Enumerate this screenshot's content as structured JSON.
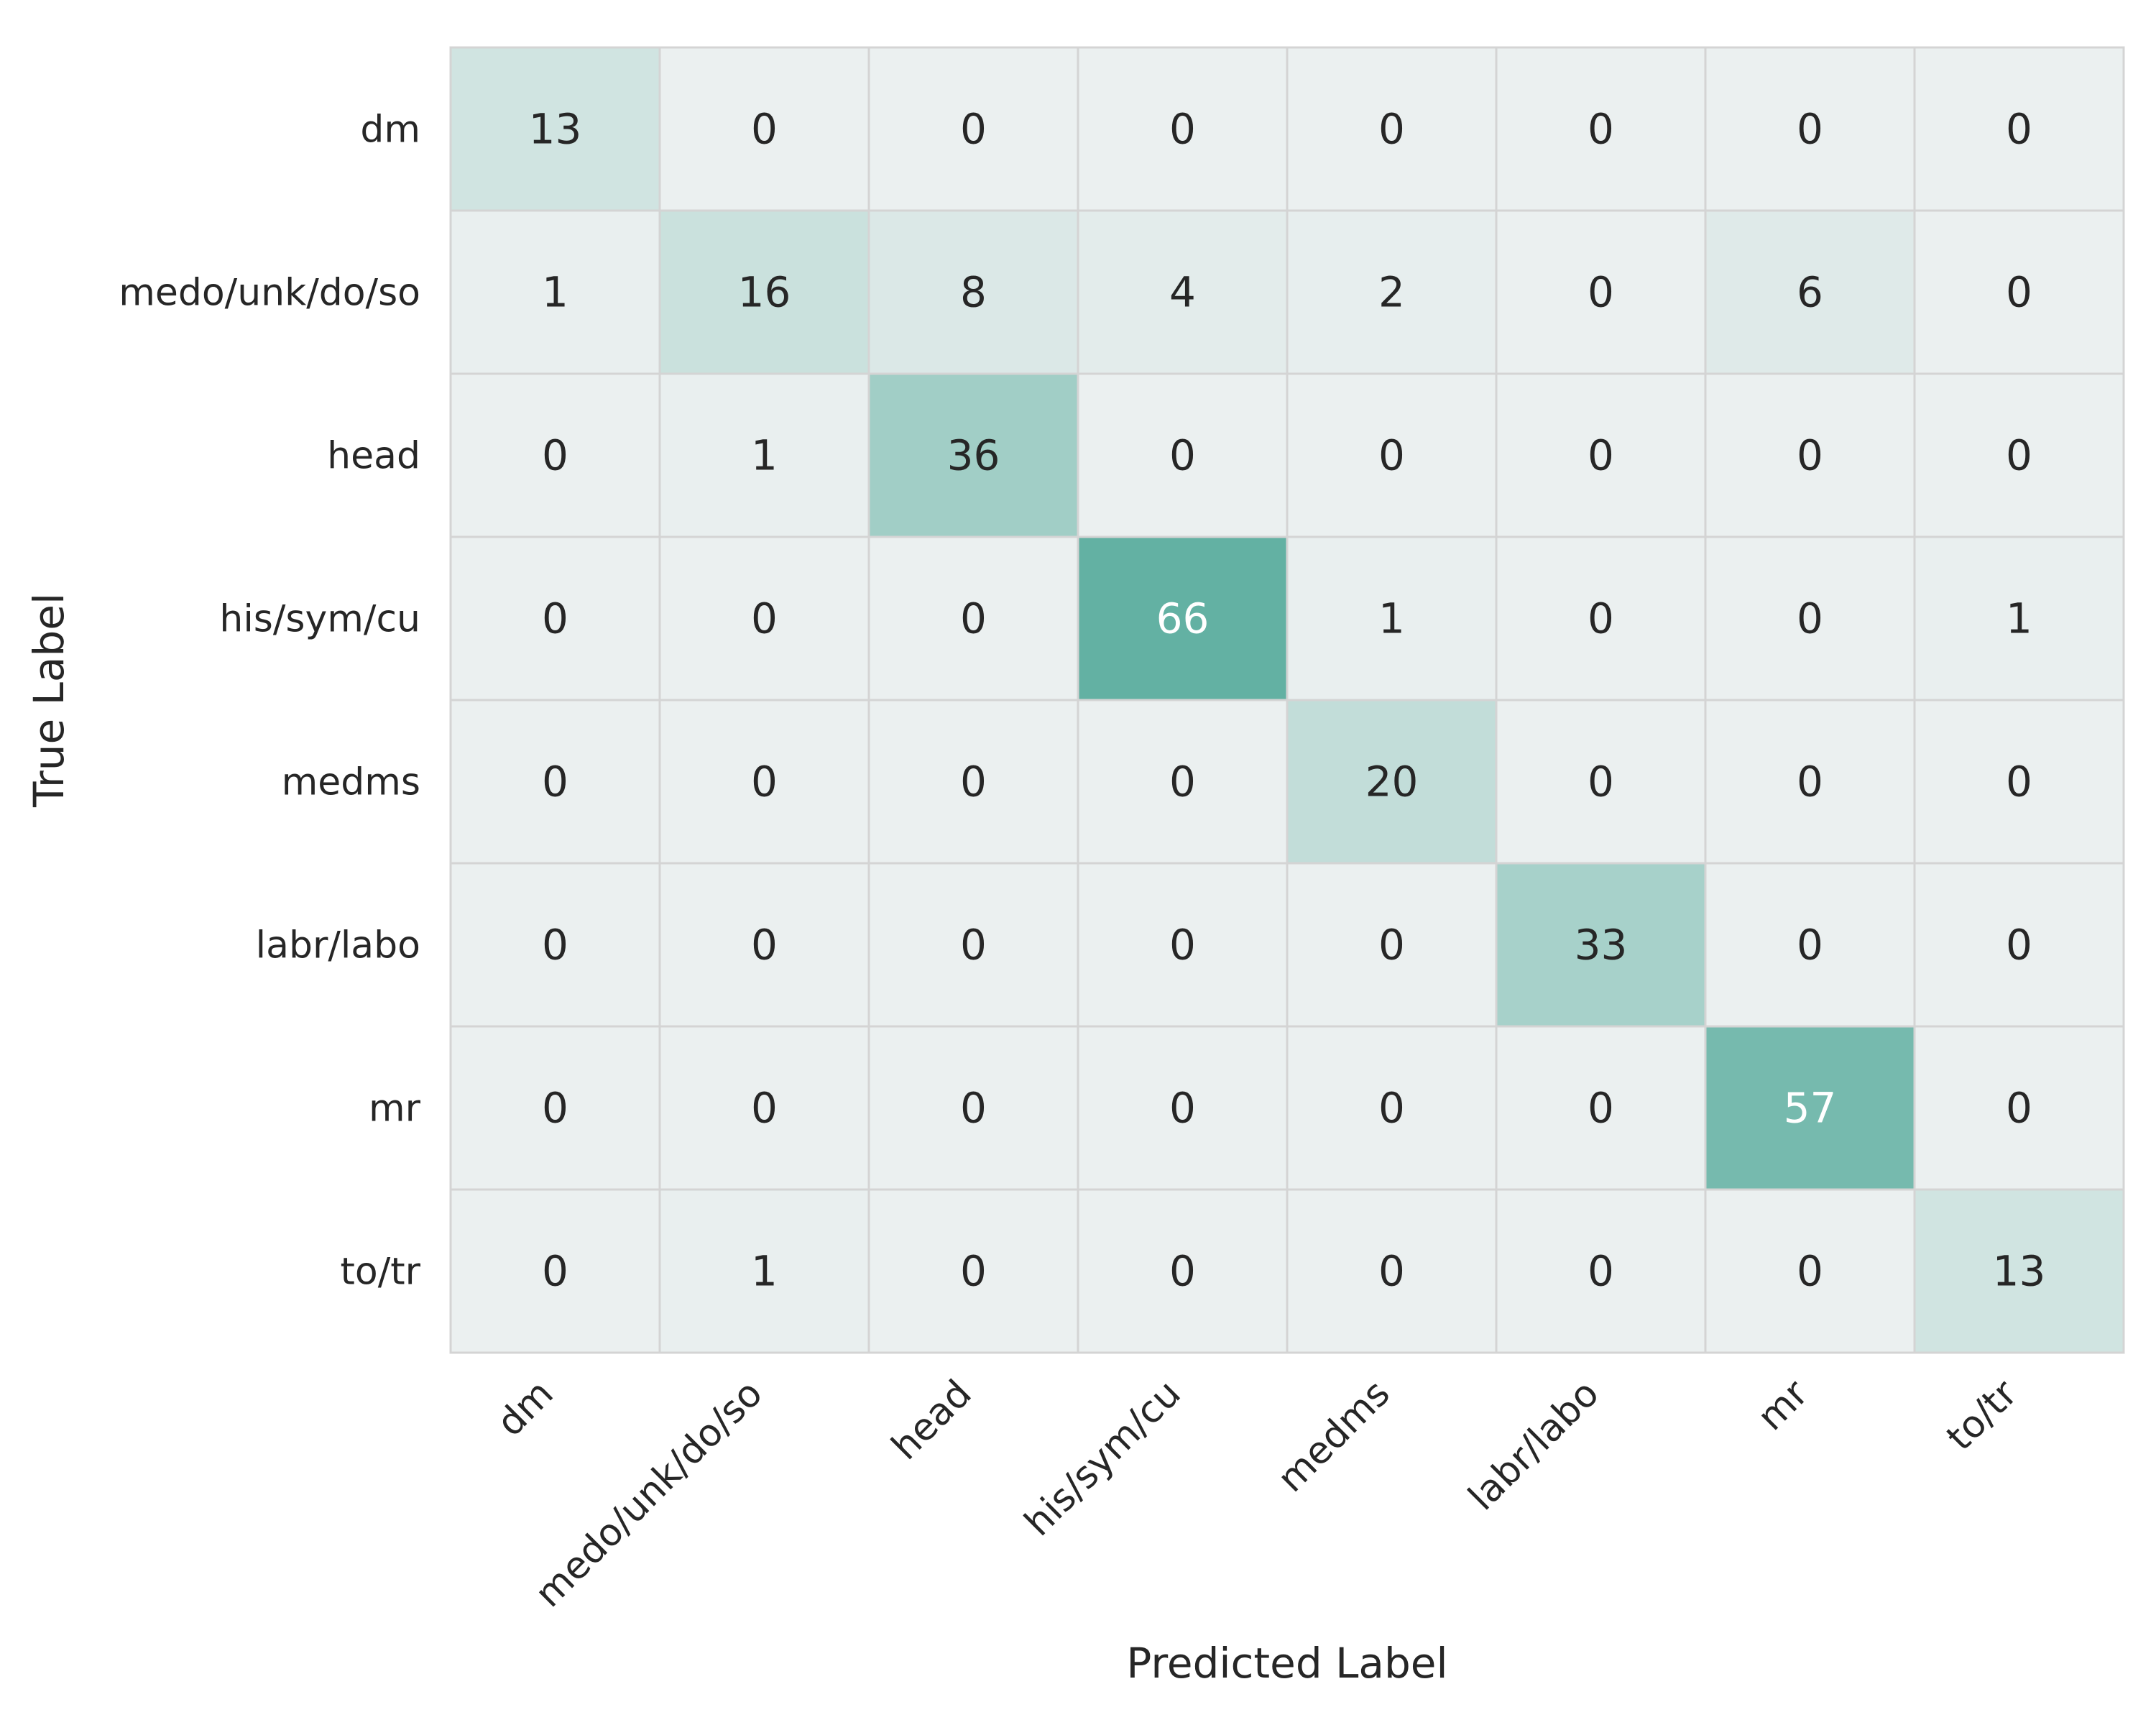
{
  "chart_data": {
    "type": "heatmap",
    "title": "",
    "xlabel": "Predicted Label",
    "ylabel": "True Label",
    "x_categories": [
      "dm",
      "medo/unk/do/so",
      "head",
      "his/sym/cu",
      "medms",
      "labr/labo",
      "mr",
      "to/tr"
    ],
    "y_categories": [
      "dm",
      "medo/unk/do/so",
      "head",
      "his/sym/cu",
      "medms",
      "labr/labo",
      "mr",
      "to/tr"
    ],
    "values": [
      [
        13,
        0,
        0,
        0,
        0,
        0,
        0,
        0
      ],
      [
        1,
        16,
        8,
        4,
        2,
        0,
        6,
        0
      ],
      [
        0,
        1,
        36,
        0,
        0,
        0,
        0,
        0
      ],
      [
        0,
        0,
        0,
        66,
        1,
        0,
        0,
        1
      ],
      [
        0,
        0,
        0,
        0,
        20,
        0,
        0,
        0
      ],
      [
        0,
        0,
        0,
        0,
        0,
        33,
        0,
        0
      ],
      [
        0,
        0,
        0,
        0,
        0,
        0,
        57,
        0
      ],
      [
        0,
        1,
        0,
        0,
        0,
        0,
        0,
        13
      ]
    ],
    "vmin": 0,
    "vmax": 66,
    "colormap": {
      "low": "#ebf0f0",
      "high": "#63b1a3"
    },
    "text_color_dark": "#262626",
    "text_color_light": "#ffffff",
    "grid_color": "#d4d4d4",
    "colorbar": false
  }
}
